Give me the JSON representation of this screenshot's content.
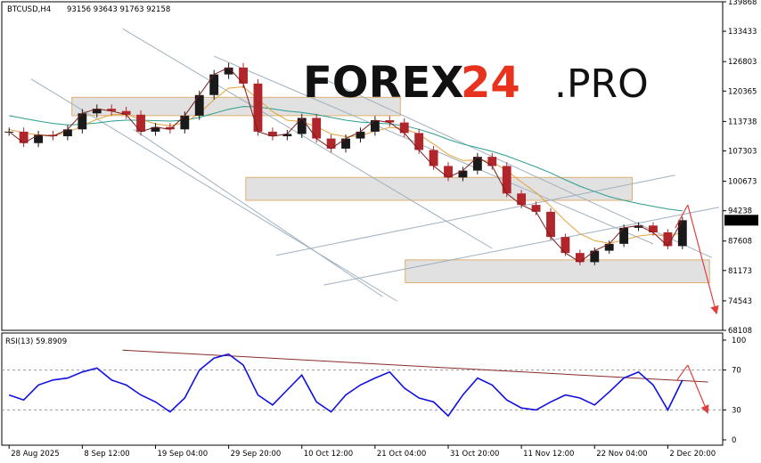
{
  "header": {
    "symbol": "BTCUSD,H4",
    "ohlc": "93156 93643 91763 92158"
  },
  "logo": {
    "part1": "FOREX",
    "part2": "24",
    "part3": ".PRO"
  },
  "chart_data": [
    {
      "type": "line",
      "name": "price",
      "ylim": [
        68108,
        139868
      ],
      "yticks": [
        139868,
        133433,
        126803,
        120365,
        113738,
        107303,
        100673,
        94238,
        87608,
        81173,
        74543,
        68108
      ],
      "current_price": 92158,
      "x_ticks": [
        "28 Aug 2025",
        "8 Sep 12:00",
        "19 Sep 04:00",
        "29 Sep 20:00",
        "10 Oct 12:00",
        "21 Oct 04:00",
        "31 Oct 20:00",
        "11 Nov 12:00",
        "22 Nov 04:00",
        "2 Dec 20:00"
      ],
      "x_tick_index": [
        0,
        1,
        2,
        3,
        4,
        5,
        6,
        7,
        8,
        9
      ],
      "x": [
        0.0,
        0.2,
        0.4,
        0.6,
        0.8,
        1.0,
        1.2,
        1.4,
        1.6,
        1.8,
        2.0,
        2.2,
        2.4,
        2.6,
        2.8,
        3.0,
        3.2,
        3.4,
        3.6,
        3.8,
        4.0,
        4.2,
        4.4,
        4.6,
        4.8,
        5.0,
        5.2,
        5.4,
        5.6,
        5.8,
        6.0,
        6.2,
        6.4,
        6.6,
        6.8,
        7.0,
        7.2,
        7.4,
        7.6,
        7.8,
        8.0,
        8.2,
        8.4,
        8.6,
        8.8,
        9.0,
        9.2
      ],
      "close": [
        111500,
        109000,
        110800,
        110500,
        112000,
        115500,
        116500,
        116000,
        115200,
        111500,
        112500,
        112000,
        115000,
        119500,
        124000,
        125500,
        122000,
        111500,
        110500,
        111000,
        114500,
        110000,
        107800,
        110000,
        111500,
        114000,
        113500,
        111200,
        107500,
        104000,
        101500,
        103000,
        106000,
        104000,
        98000,
        95500,
        94000,
        88500,
        85000,
        83000,
        85500,
        87000,
        90500,
        91000,
        89500,
        86500,
        92158
      ],
      "ma_fast": [
        112000,
        111200,
        110800,
        110700,
        111300,
        112800,
        114200,
        115200,
        115300,
        114200,
        113200,
        112800,
        113500,
        115500,
        118500,
        121000,
        121300,
        118600,
        115900,
        114000,
        113700,
        112600,
        111000,
        110400,
        110600,
        111600,
        112400,
        112200,
        110900,
        108800,
        106500,
        105200,
        105300,
        104900,
        103000,
        100500,
        98200,
        95200,
        92000,
        89200,
        87700,
        87100,
        87800,
        88700,
        89100,
        88600,
        89500
      ],
      "ma_slow": [
        115000,
        114400,
        113800,
        113300,
        113000,
        113100,
        113400,
        113800,
        114000,
        114000,
        113900,
        113800,
        114000,
        114600,
        115500,
        116400,
        117000,
        116900,
        116500,
        116000,
        115700,
        115200,
        114600,
        114000,
        113600,
        113400,
        113200,
        112800,
        112000,
        111000,
        109800,
        108800,
        108000,
        107200,
        106200,
        105000,
        103800,
        102500,
        101000,
        99600,
        98400,
        97300,
        96500,
        95800,
        95200,
        94600,
        94200
      ],
      "zones": [
        [
          115000,
          119000
        ],
        [
          96500,
          101500
        ],
        [
          78500,
          83500
        ]
      ],
      "forecast_target": 72000
    },
    {
      "type": "line",
      "name": "rsi",
      "title": "RSI(13) 59.8909",
      "ylim": [
        0,
        100
      ],
      "yticks": [
        100,
        70,
        30,
        0
      ],
      "x": [
        0.0,
        0.2,
        0.4,
        0.6,
        0.8,
        1.0,
        1.2,
        1.4,
        1.6,
        1.8,
        2.0,
        2.2,
        2.4,
        2.6,
        2.8,
        3.0,
        3.2,
        3.4,
        3.6,
        3.8,
        4.0,
        4.2,
        4.4,
        4.6,
        4.8,
        5.0,
        5.2,
        5.4,
        5.6,
        5.8,
        6.0,
        6.2,
        6.4,
        6.6,
        6.8,
        7.0,
        7.2,
        7.4,
        7.6,
        7.8,
        8.0,
        8.2,
        8.4,
        8.6,
        8.8,
        9.0,
        9.2
      ],
      "values": [
        45,
        40,
        55,
        60,
        62,
        68,
        72,
        60,
        55,
        45,
        38,
        28,
        42,
        70,
        82,
        86,
        75,
        45,
        35,
        50,
        65,
        38,
        28,
        45,
        55,
        62,
        68,
        52,
        42,
        38,
        24,
        45,
        62,
        55,
        40,
        32,
        30,
        38,
        45,
        42,
        35,
        48,
        62,
        68,
        55,
        30,
        59.89
      ]
    }
  ]
}
